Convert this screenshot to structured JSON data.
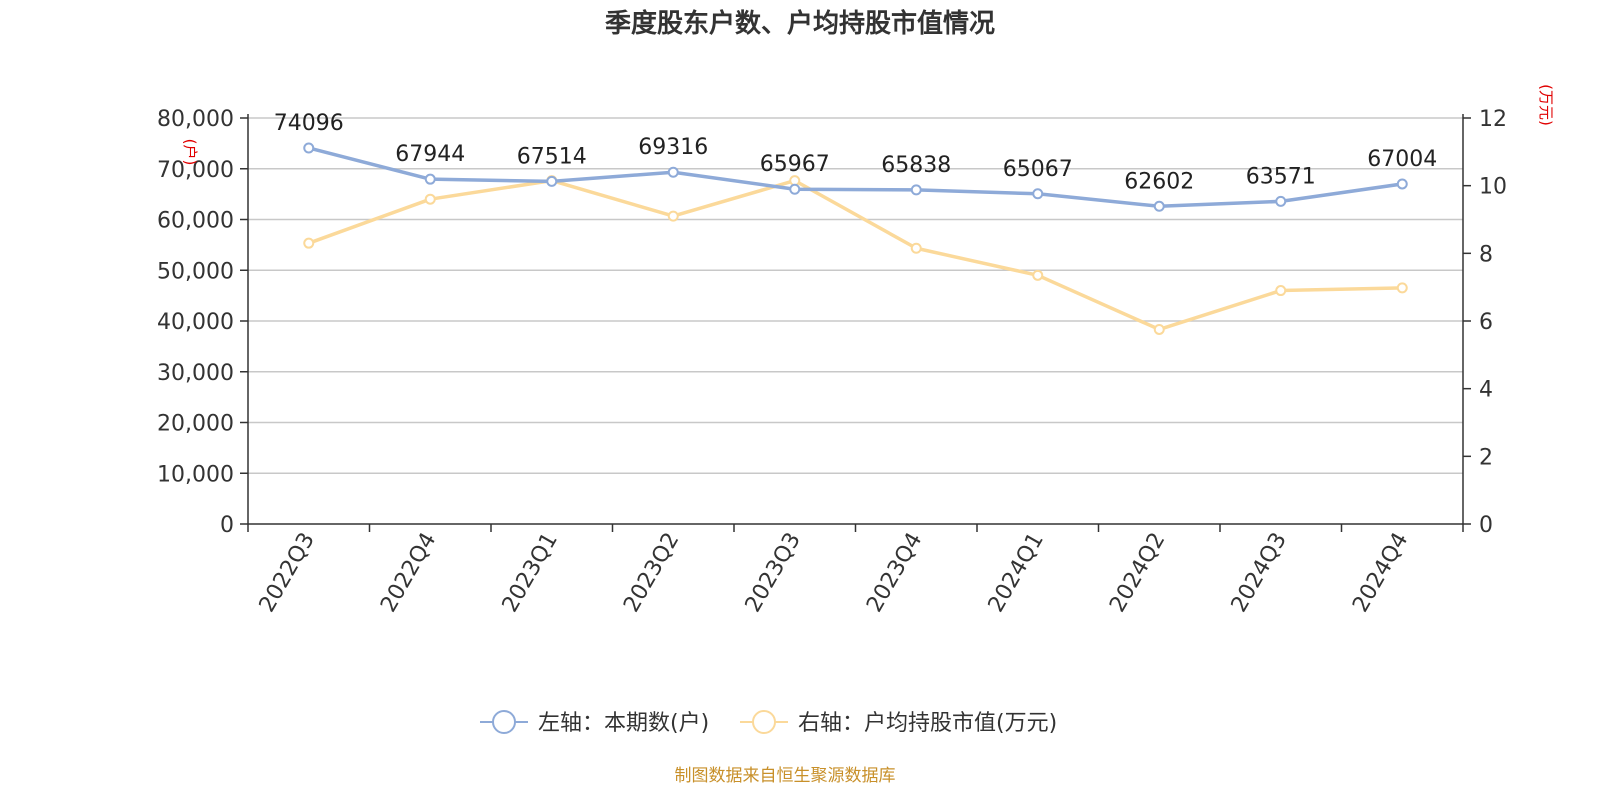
{
  "chart_data": {
    "type": "line",
    "title": "季度股东户数、户均持股市值情况",
    "categories": [
      "2022Q3",
      "2022Q4",
      "2023Q1",
      "2023Q2",
      "2023Q3",
      "2023Q4",
      "2024Q1",
      "2024Q2",
      "2024Q3",
      "2024Q4"
    ],
    "y_left": {
      "min": 0,
      "max": 80000,
      "ticks": [
        "0",
        "10,000",
        "20,000",
        "30,000",
        "40,000",
        "50,000",
        "60,000",
        "70,000",
        "80,000"
      ],
      "unit_label": "(户)"
    },
    "y_right": {
      "min": 0,
      "max": 12,
      "ticks": [
        "0",
        "2",
        "4",
        "6",
        "8",
        "10",
        "12"
      ],
      "unit_label": "(万元)"
    },
    "grid": true,
    "legend_position": "bottom",
    "series": [
      {
        "name": "左轴：本期数(户)",
        "axis": "left",
        "color": "#8eaad8",
        "values": [
          74096,
          67944,
          67514,
          69316,
          65967,
          65838,
          65067,
          62602,
          63571,
          67004
        ],
        "data_labels": [
          "74096",
          "67944",
          "67514",
          "69316",
          "65967",
          "65838",
          "65067",
          "62602",
          "63571",
          "67004"
        ]
      },
      {
        "name": "右轴：户均持股市值(万元)",
        "axis": "right",
        "color": "#fbd99a",
        "values": [
          8.3,
          9.6,
          10.15,
          9.1,
          10.15,
          8.15,
          7.35,
          5.75,
          6.9,
          6.98
        ]
      }
    ],
    "source": "制图数据来自恒生聚源数据库"
  }
}
